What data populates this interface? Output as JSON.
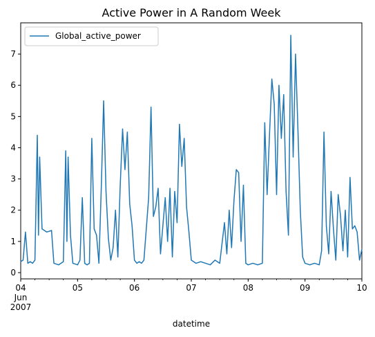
{
  "chart_data": {
    "type": "line",
    "title": "Active Power in A Random Week",
    "xlabel": "datetime",
    "ylabel": "",
    "x_range": [
      "2007-06-04",
      "2007-06-10"
    ],
    "ylim": [
      -0.2,
      8.0
    ],
    "grid": false,
    "legend_position": "top-left",
    "x_ticks": [
      {
        "date": "2007-06-04",
        "label": "04",
        "sublabel_1": "Jun",
        "sublabel_2": "2007"
      },
      {
        "date": "2007-06-05",
        "label": "05"
      },
      {
        "date": "2007-06-06",
        "label": "06"
      },
      {
        "date": "2007-06-07",
        "label": "07"
      },
      {
        "date": "2007-06-08",
        "label": "08"
      },
      {
        "date": "2007-06-09",
        "label": "09"
      },
      {
        "date": "2007-06-10",
        "label": "10"
      }
    ],
    "y_ticks": [
      0,
      1,
      2,
      3,
      4,
      5,
      6,
      7
    ],
    "series": [
      {
        "name": "Global_active_power",
        "color": "#1f77b4",
        "points": [
          [
            "2007-06-04 00:00",
            0.35
          ],
          [
            "2007-06-04 01:00",
            0.4
          ],
          [
            "2007-06-04 02:00",
            1.3
          ],
          [
            "2007-06-04 03:00",
            0.3
          ],
          [
            "2007-06-04 04:00",
            0.35
          ],
          [
            "2007-06-04 05:00",
            0.3
          ],
          [
            "2007-06-04 06:00",
            0.4
          ],
          [
            "2007-06-04 07:00",
            4.4
          ],
          [
            "2007-06-04 07:30",
            1.2
          ],
          [
            "2007-06-04 08:00",
            3.7
          ],
          [
            "2007-06-04 09:00",
            1.4
          ],
          [
            "2007-06-04 11:00",
            1.3
          ],
          [
            "2007-06-04 13:00",
            1.35
          ],
          [
            "2007-06-04 14:00",
            0.3
          ],
          [
            "2007-06-04 16:00",
            0.25
          ],
          [
            "2007-06-04 18:00",
            0.35
          ],
          [
            "2007-06-04 19:00",
            3.9
          ],
          [
            "2007-06-04 19:30",
            1.0
          ],
          [
            "2007-06-04 20:00",
            3.7
          ],
          [
            "2007-06-04 21:00",
            1.2
          ],
          [
            "2007-06-04 22:00",
            0.3
          ],
          [
            "2007-06-05 00:00",
            0.25
          ],
          [
            "2007-06-05 01:00",
            0.4
          ],
          [
            "2007-06-05 02:00",
            2.4
          ],
          [
            "2007-06-05 03:00",
            0.3
          ],
          [
            "2007-06-05 04:00",
            0.25
          ],
          [
            "2007-06-05 05:00",
            0.3
          ],
          [
            "2007-06-05 06:00",
            4.3
          ],
          [
            "2007-06-05 07:00",
            1.4
          ],
          [
            "2007-06-05 08:00",
            1.2
          ],
          [
            "2007-06-05 09:00",
            0.3
          ],
          [
            "2007-06-05 10:00",
            2.7
          ],
          [
            "2007-06-05 11:00",
            5.5
          ],
          [
            "2007-06-05 12:00",
            2.6
          ],
          [
            "2007-06-05 13:00",
            1.1
          ],
          [
            "2007-06-05 14:00",
            0.4
          ],
          [
            "2007-06-05 15:00",
            0.8
          ],
          [
            "2007-06-05 16:00",
            2.0
          ],
          [
            "2007-06-05 17:00",
            0.5
          ],
          [
            "2007-06-05 18:00",
            2.8
          ],
          [
            "2007-06-05 19:00",
            4.6
          ],
          [
            "2007-06-05 20:00",
            3.3
          ],
          [
            "2007-06-05 21:00",
            4.5
          ],
          [
            "2007-06-05 22:00",
            2.2
          ],
          [
            "2007-06-05 23:00",
            1.5
          ],
          [
            "2007-06-06 00:00",
            0.4
          ],
          [
            "2007-06-06 01:00",
            0.3
          ],
          [
            "2007-06-06 02:00",
            0.35
          ],
          [
            "2007-06-06 03:00",
            0.3
          ],
          [
            "2007-06-06 04:00",
            0.4
          ],
          [
            "2007-06-06 05:00",
            1.4
          ],
          [
            "2007-06-06 06:00",
            2.4
          ],
          [
            "2007-06-06 07:00",
            5.3
          ],
          [
            "2007-06-06 08:00",
            1.8
          ],
          [
            "2007-06-06 09:00",
            2.1
          ],
          [
            "2007-06-06 10:00",
            2.7
          ],
          [
            "2007-06-06 11:00",
            0.6
          ],
          [
            "2007-06-06 12:00",
            1.5
          ],
          [
            "2007-06-06 13:00",
            2.4
          ],
          [
            "2007-06-06 14:00",
            1.0
          ],
          [
            "2007-06-06 15:00",
            2.7
          ],
          [
            "2007-06-06 16:00",
            0.5
          ],
          [
            "2007-06-06 17:00",
            2.6
          ],
          [
            "2007-06-06 18:00",
            1.6
          ],
          [
            "2007-06-06 19:00",
            4.75
          ],
          [
            "2007-06-06 20:00",
            3.4
          ],
          [
            "2007-06-06 21:00",
            4.3
          ],
          [
            "2007-06-06 22:00",
            2.1
          ],
          [
            "2007-06-06 23:00",
            1.3
          ],
          [
            "2007-06-07 00:00",
            0.4
          ],
          [
            "2007-06-07 02:00",
            0.3
          ],
          [
            "2007-06-07 04:00",
            0.35
          ],
          [
            "2007-06-07 06:00",
            0.3
          ],
          [
            "2007-06-07 08:00",
            0.25
          ],
          [
            "2007-06-07 10:00",
            0.4
          ],
          [
            "2007-06-07 12:00",
            0.3
          ],
          [
            "2007-06-07 14:00",
            1.6
          ],
          [
            "2007-06-07 15:00",
            0.6
          ],
          [
            "2007-06-07 16:00",
            2.0
          ],
          [
            "2007-06-07 17:00",
            0.8
          ],
          [
            "2007-06-07 18:00",
            2.3
          ],
          [
            "2007-06-07 19:00",
            3.3
          ],
          [
            "2007-06-07 20:00",
            3.2
          ],
          [
            "2007-06-07 21:00",
            1.0
          ],
          [
            "2007-06-07 22:00",
            2.8
          ],
          [
            "2007-06-07 23:00",
            0.3
          ],
          [
            "2007-06-08 00:00",
            0.25
          ],
          [
            "2007-06-08 02:00",
            0.3
          ],
          [
            "2007-06-08 04:00",
            0.25
          ],
          [
            "2007-06-08 06:00",
            0.3
          ],
          [
            "2007-06-08 07:00",
            4.8
          ],
          [
            "2007-06-08 08:00",
            2.5
          ],
          [
            "2007-06-08 09:00",
            4.4
          ],
          [
            "2007-06-08 10:00",
            6.2
          ],
          [
            "2007-06-08 11:00",
            5.4
          ],
          [
            "2007-06-08 12:00",
            2.5
          ],
          [
            "2007-06-08 13:00",
            6.0
          ],
          [
            "2007-06-08 14:00",
            4.3
          ],
          [
            "2007-06-08 15:00",
            5.7
          ],
          [
            "2007-06-08 16:00",
            2.6
          ],
          [
            "2007-06-08 17:00",
            1.2
          ],
          [
            "2007-06-08 18:00",
            7.6
          ],
          [
            "2007-06-08 19:00",
            3.7
          ],
          [
            "2007-06-08 20:00",
            7.0
          ],
          [
            "2007-06-08 21:00",
            4.6
          ],
          [
            "2007-06-08 22:00",
            2.0
          ],
          [
            "2007-06-08 23:00",
            0.5
          ],
          [
            "2007-06-09 00:00",
            0.3
          ],
          [
            "2007-06-09 02:00",
            0.25
          ],
          [
            "2007-06-09 04:00",
            0.3
          ],
          [
            "2007-06-09 06:00",
            0.25
          ],
          [
            "2007-06-09 07:00",
            0.7
          ],
          [
            "2007-06-09 08:00",
            4.5
          ],
          [
            "2007-06-09 09:00",
            1.5
          ],
          [
            "2007-06-09 10:00",
            0.6
          ],
          [
            "2007-06-09 11:00",
            2.6
          ],
          [
            "2007-06-09 12:00",
            1.4
          ],
          [
            "2007-06-09 13:00",
            0.4
          ],
          [
            "2007-06-09 14:00",
            2.5
          ],
          [
            "2007-06-09 15:00",
            1.8
          ],
          [
            "2007-06-09 16:00",
            0.7
          ],
          [
            "2007-06-09 17:00",
            2.0
          ],
          [
            "2007-06-09 18:00",
            0.5
          ],
          [
            "2007-06-09 19:00",
            3.05
          ],
          [
            "2007-06-09 20:00",
            1.4
          ],
          [
            "2007-06-09 21:00",
            1.5
          ],
          [
            "2007-06-09 22:00",
            1.3
          ],
          [
            "2007-06-09 23:00",
            0.4
          ],
          [
            "2007-06-10 00:00",
            0.75
          ]
        ]
      }
    ]
  }
}
